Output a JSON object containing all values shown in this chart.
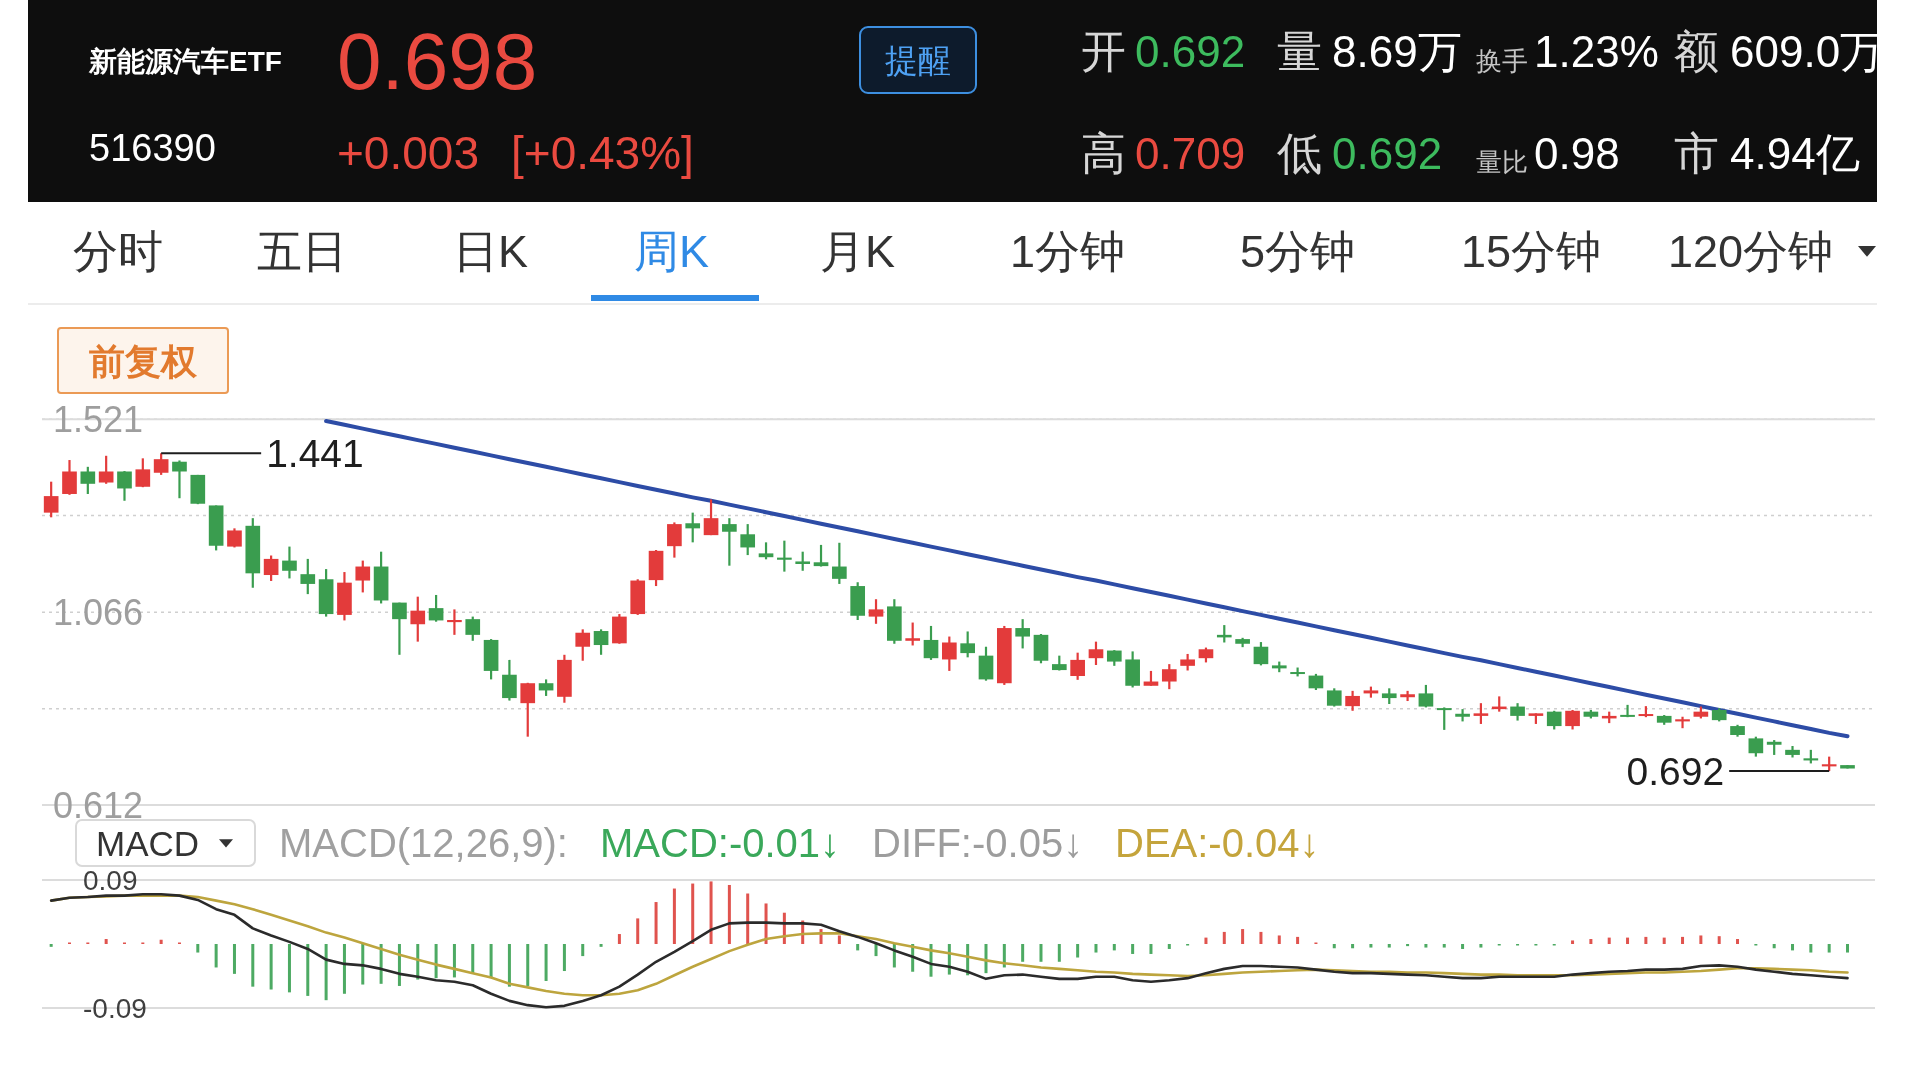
{
  "chart_data": [
    {
      "type": "other",
      "title": "新能源汽车ETF",
      "subtitle": "516390",
      "annotations": [
        "0.698",
        "+0.003",
        "[+0.43%]",
        "提醒",
        "开",
        "0.692",
        "量",
        "8.69万",
        "换手",
        "1.23%",
        "额",
        "609.0万",
        "高",
        "0.709",
        "低",
        "0.692",
        "量比",
        "0.98",
        "市",
        "4.94亿",
        "分时",
        "五日",
        "日K",
        "周K",
        "月K",
        "1分钟",
        "5分钟",
        "15分钟",
        "120分钟",
        "前复权"
      ]
    },
    {
      "type": "candlestick",
      "categories": [
        null,
        null,
        null,
        null,
        null,
        null,
        null,
        null,
        null,
        null,
        null,
        null,
        null,
        null,
        null,
        null,
        null,
        null,
        null,
        null,
        null,
        null,
        null,
        null,
        null,
        null,
        null,
        null,
        null,
        null,
        null,
        null,
        null,
        null,
        null,
        null,
        null,
        null,
        null,
        null,
        null,
        null,
        null,
        null,
        null,
        null,
        null,
        null,
        null,
        null,
        null,
        null,
        null,
        null,
        null,
        null,
        null,
        null,
        null,
        null,
        null,
        null,
        null,
        null,
        null,
        null,
        null,
        null,
        null,
        null,
        null,
        null,
        null,
        null,
        null,
        null,
        null,
        null,
        null,
        null,
        null,
        null,
        null,
        null,
        null,
        null,
        null,
        null,
        null,
        null,
        null,
        null,
        null,
        null,
        null,
        null,
        null,
        null,
        null
      ],
      "ohlc": [
        [
          1.301,
          1.374,
          1.29,
          1.34
        ],
        [
          1.345,
          1.425,
          1.343,
          1.398
        ],
        [
          1.398,
          1.409,
          1.345,
          1.369
        ],
        [
          1.372,
          1.435,
          1.369,
          1.398
        ],
        [
          1.398,
          1.399,
          1.329,
          1.358
        ],
        [
          1.362,
          1.429,
          1.361,
          1.403
        ],
        [
          1.395,
          1.441,
          1.39,
          1.427
        ],
        [
          1.421,
          1.424,
          1.335,
          1.398
        ],
        [
          1.39,
          1.39,
          1.321,
          1.322
        ],
        [
          1.318,
          1.318,
          1.212,
          1.223
        ],
        [
          1.221,
          1.264,
          1.219,
          1.259
        ],
        [
          1.27,
          1.288,
          1.124,
          1.158
        ],
        [
          1.154,
          1.2,
          1.14,
          1.192
        ],
        [
          1.188,
          1.221,
          1.146,
          1.164
        ],
        [
          1.156,
          1.192,
          1.109,
          1.133
        ],
        [
          1.144,
          1.168,
          1.056,
          1.062
        ],
        [
          1.06,
          1.161,
          1.047,
          1.136
        ],
        [
          1.141,
          1.188,
          1.113,
          1.174
        ],
        [
          1.174,
          1.209,
          1.087,
          1.094
        ],
        [
          1.089,
          1.089,
          0.966,
          1.05
        ],
        [
          1.038,
          1.103,
          0.997,
          1.07
        ],
        [
          1.076,
          1.107,
          1.044,
          1.047
        ],
        [
          1.043,
          1.073,
          1.013,
          1.048
        ],
        [
          1.05,
          1.056,
          0.999,
          1.013
        ],
        [
          1.001,
          1.003,
          0.908,
          0.928
        ],
        [
          0.919,
          0.954,
          0.858,
          0.864
        ],
        [
          0.852,
          0.9,
          0.773,
          0.899
        ],
        [
          0.899,
          0.908,
          0.869,
          0.882
        ],
        [
          0.867,
          0.966,
          0.853,
          0.954
        ],
        [
          0.985,
          1.026,
          0.952,
          1.018
        ],
        [
          1.022,
          1.026,
          0.966,
          0.989
        ],
        [
          0.993,
          1.062,
          0.992,
          1.056
        ],
        [
          1.062,
          1.144,
          1.06,
          1.141
        ],
        [
          1.142,
          1.213,
          1.128,
          1.211
        ],
        [
          1.222,
          1.278,
          1.195,
          1.274
        ],
        [
          1.276,
          1.301,
          1.231,
          1.264
        ],
        [
          1.248,
          1.332,
          1.248,
          1.288
        ],
        [
          1.274,
          1.288,
          1.176,
          1.256
        ],
        [
          1.25,
          1.274,
          1.201,
          1.219
        ],
        [
          1.205,
          1.231,
          1.191,
          1.196
        ],
        [
          1.195,
          1.235,
          1.162,
          1.19
        ],
        [
          1.186,
          1.209,
          1.164,
          1.18
        ],
        [
          1.184,
          1.225,
          1.174,
          1.175
        ],
        [
          1.174,
          1.23,
          1.133,
          1.145
        ],
        [
          1.128,
          1.137,
          1.048,
          1.058
        ],
        [
          1.056,
          1.097,
          1.039,
          1.073
        ],
        [
          1.08,
          1.097,
          0.992,
          0.999
        ],
        [
          0.999,
          1.042,
          0.988,
          1.005
        ],
        [
          1.001,
          1.034,
          0.954,
          0.958
        ],
        [
          0.955,
          1.009,
          0.928,
          0.995
        ],
        [
          0.993,
          1.021,
          0.96,
          0.97
        ],
        [
          0.964,
          0.985,
          0.905,
          0.908
        ],
        [
          0.899,
          1.034,
          0.895,
          1.029
        ],
        [
          1.029,
          1.05,
          0.981,
          1.009
        ],
        [
          1.013,
          1.015,
          0.946,
          0.952
        ],
        [
          0.944,
          0.964,
          0.929,
          0.93
        ],
        [
          0.916,
          0.971,
          0.907,
          0.954
        ],
        [
          0.958,
          0.997,
          0.942,
          0.979
        ],
        [
          0.976,
          0.977,
          0.94,
          0.95
        ],
        [
          0.955,
          0.974,
          0.889,
          0.893
        ],
        [
          0.893,
          0.928,
          0.893,
          0.903
        ],
        [
          0.903,
          0.944,
          0.885,
          0.932
        ],
        [
          0.94,
          0.968,
          0.929,
          0.955
        ],
        [
          0.958,
          0.983,
          0.948,
          0.979
        ],
        [
          1.013,
          1.036,
          0.995,
          1.007
        ],
        [
          1.003,
          1.006,
          0.984,
          0.992
        ],
        [
          0.985,
          0.996,
          0.941,
          0.944
        ],
        [
          0.941,
          0.95,
          0.925,
          0.934
        ],
        [
          0.925,
          0.936,
          0.915,
          0.921
        ],
        [
          0.917,
          0.921,
          0.883,
          0.887
        ],
        [
          0.882,
          0.887,
          0.844,
          0.846
        ],
        [
          0.845,
          0.881,
          0.834,
          0.869
        ],
        [
          0.875,
          0.891,
          0.865,
          0.882
        ],
        [
          0.875,
          0.887,
          0.85,
          0.864
        ],
        [
          0.866,
          0.881,
          0.857,
          0.873
        ],
        [
          0.875,
          0.895,
          0.842,
          0.844
        ],
        [
          0.84,
          0.842,
          0.789,
          0.836
        ],
        [
          0.827,
          0.838,
          0.809,
          0.82
        ],
        [
          0.822,
          0.852,
          0.803,
          0.828
        ],
        [
          0.838,
          0.868,
          0.832,
          0.844
        ],
        [
          0.844,
          0.852,
          0.811,
          0.822
        ],
        [
          0.822,
          0.828,
          0.803,
          0.828
        ],
        [
          0.832,
          0.834,
          0.79,
          0.798
        ],
        [
          0.798,
          0.836,
          0.79,
          0.834
        ],
        [
          0.832,
          0.836,
          0.816,
          0.82
        ],
        [
          0.816,
          0.832,
          0.805,
          0.822
        ],
        [
          0.824,
          0.848,
          0.819,
          0.82
        ],
        [
          0.822,
          0.845,
          0.819,
          0.826
        ],
        [
          0.822,
          0.824,
          0.801,
          0.806
        ],
        [
          0.809,
          0.82,
          0.793,
          0.814
        ],
        [
          0.82,
          0.844,
          0.816,
          0.832
        ],
        [
          0.836,
          0.84,
          0.809,
          0.812
        ],
        [
          0.798,
          0.801,
          0.773,
          0.777
        ],
        [
          0.769,
          0.773,
          0.726,
          0.734
        ],
        [
          0.761,
          0.765,
          0.73,
          0.754
        ],
        [
          0.742,
          0.751,
          0.724,
          0.73
        ],
        [
          0.722,
          0.742,
          0.71,
          0.717
        ],
        [
          0.703,
          0.726,
          0.692,
          0.708
        ],
        [
          0.706,
          0.706,
          0.698,
          0.698
        ]
      ],
      "colors": [
        "#e33b3b",
        "#e33b3b",
        "#3a9d4f",
        "#e33b3b",
        "#3a9d4f",
        "#e33b3b",
        "#e33b3b",
        "#3a9d4f",
        "#3a9d4f",
        "#3a9d4f",
        "#e33b3b",
        "#3a9d4f",
        "#e33b3b",
        "#3a9d4f",
        "#3a9d4f",
        "#3a9d4f",
        "#e33b3b",
        "#e33b3b",
        "#3a9d4f",
        "#3a9d4f",
        "#e33b3b",
        "#3a9d4f",
        "#e33b3b",
        "#3a9d4f",
        "#3a9d4f",
        "#3a9d4f",
        "#e33b3b",
        "#3a9d4f",
        "#e33b3b",
        "#e33b3b",
        "#3a9d4f",
        "#e33b3b",
        "#e33b3b",
        "#e33b3b",
        "#e33b3b",
        "#3a9d4f",
        "#e33b3b",
        "#3a9d4f",
        "#3a9d4f",
        "#3a9d4f",
        "#3a9d4f",
        "#3a9d4f",
        "#3a9d4f",
        "#3a9d4f",
        "#3a9d4f",
        "#e33b3b",
        "#3a9d4f",
        "#e33b3b",
        "#3a9d4f",
        "#e33b3b",
        "#3a9d4f",
        "#3a9d4f",
        "#e33b3b",
        "#3a9d4f",
        "#3a9d4f",
        "#3a9d4f",
        "#e33b3b",
        "#e33b3b",
        "#3a9d4f",
        "#3a9d4f",
        "#e33b3b",
        "#e33b3b",
        "#e33b3b",
        "#e33b3b",
        "#3a9d4f",
        "#3a9d4f",
        "#3a9d4f",
        "#3a9d4f",
        "#3a9d4f",
        "#3a9d4f",
        "#3a9d4f",
        "#e33b3b",
        "#e33b3b",
        "#3a9d4f",
        "#e33b3b",
        "#3a9d4f",
        "#3a9d4f",
        "#3a9d4f",
        "#e33b3b",
        "#e33b3b",
        "#3a9d4f",
        "#e33b3b",
        "#3a9d4f",
        "#e33b3b",
        "#3a9d4f",
        "#e33b3b",
        "#3a9d4f",
        "#e33b3b",
        "#3a9d4f",
        "#e33b3b",
        "#e33b3b",
        "#3a9d4f",
        "#3a9d4f",
        "#3a9d4f",
        "#3a9d4f",
        "#3a9d4f",
        "#3a9d4f",
        "#e33b3b",
        "#3a9d4f"
      ],
      "ylim": [
        0.612,
        1.521
      ],
      "yticks": [
        0.612,
        {
          "value": 0.839,
          "label": null
        },
        1.066,
        {
          "value": 1.294,
          "label": null
        },
        1.521
      ],
      "grid": "y",
      "tick_labels": "y",
      "series": [
        {
          "type": "line",
          "color": "#2d4ca6",
          "values": [
            null,
            null,
            null,
            null,
            null,
            null,
            null,
            null,
            null,
            null,
            null,
            null,
            null,
            null,
            null,
            1.517,
            1.508,
            1.499,
            1.49,
            1.481,
            1.472,
            1.463,
            1.454,
            1.445,
            1.436,
            1.427,
            1.418,
            1.409,
            1.4,
            1.391,
            1.382,
            1.373,
            1.364,
            1.355,
            1.346,
            1.337,
            1.329,
            1.32,
            1.311,
            1.302,
            1.293,
            1.284,
            1.275,
            1.266,
            1.257,
            1.248,
            1.239,
            1.23,
            1.221,
            1.212,
            1.203,
            1.194,
            1.185,
            1.176,
            1.167,
            1.158,
            1.149,
            1.141,
            1.132,
            1.123,
            1.114,
            1.105,
            1.096,
            1.087,
            1.078,
            1.069,
            1.06,
            1.051,
            1.042,
            1.033,
            1.024,
            1.015,
            1.006,
            0.997,
            0.988,
            0.979,
            0.97,
            0.961,
            0.953,
            0.944,
            0.935,
            0.926,
            0.917,
            0.908,
            0.899,
            0.89,
            0.881,
            0.872,
            0.863,
            0.854,
            0.845,
            0.836,
            0.827,
            0.818,
            0.809,
            0.8,
            0.791,
            0.782,
            0.774
          ]
        }
      ],
      "annotations": [
        "1.441",
        "0.692"
      ]
    },
    {
      "type": "bar",
      "title": "MACD(12,26,9):",
      "categories": [
        null,
        null,
        null,
        null,
        null,
        null,
        null,
        null,
        null,
        null,
        null,
        null,
        null,
        null,
        null,
        null,
        null,
        null,
        null,
        null,
        null,
        null,
        null,
        null,
        null,
        null,
        null,
        null,
        null,
        null,
        null,
        null,
        null,
        null,
        null,
        null,
        null,
        null,
        null,
        null,
        null,
        null,
        null,
        null,
        null,
        null,
        null,
        null,
        null,
        null,
        null,
        null,
        null,
        null,
        null,
        null,
        null,
        null,
        null,
        null,
        null,
        null,
        null,
        null,
        null,
        null,
        null,
        null,
        null,
        null,
        null,
        null,
        null,
        null,
        null,
        null,
        null,
        null,
        null,
        null,
        null,
        null,
        null,
        null,
        null,
        null,
        null,
        null,
        null,
        null,
        null,
        null,
        null,
        null,
        null,
        null,
        null,
        null,
        null
      ],
      "values": [
        -0.004,
        0.002,
        0.002,
        0.007,
        0.002,
        0.002,
        0.006,
        0.002,
        -0.012,
        -0.033,
        -0.042,
        -0.06,
        -0.064,
        -0.068,
        -0.073,
        -0.079,
        -0.07,
        -0.057,
        -0.056,
        -0.059,
        -0.05,
        -0.048,
        -0.047,
        -0.042,
        -0.048,
        -0.06,
        -0.059,
        -0.052,
        -0.038,
        -0.017,
        -0.004,
        0.014,
        0.036,
        0.059,
        0.078,
        0.085,
        0.088,
        0.083,
        0.071,
        0.057,
        0.044,
        0.033,
        0.021,
        0.012,
        -0.009,
        -0.017,
        -0.033,
        -0.039,
        -0.046,
        -0.043,
        -0.044,
        -0.041,
        -0.033,
        -0.025,
        -0.025,
        -0.025,
        -0.019,
        -0.012,
        -0.009,
        -0.014,
        -0.014,
        -0.007,
        -0.001,
        0.009,
        0.017,
        0.021,
        0.017,
        0.012,
        0.01,
        0.001,
        -0.006,
        -0.006,
        -0.005,
        -0.005,
        -0.003,
        -0.005,
        -0.005,
        -0.007,
        -0.005,
        -0.002,
        -0.002,
        -0.001,
        -0.001,
        0.005,
        0.007,
        0.009,
        0.009,
        0.01,
        0.009,
        0.01,
        0.012,
        0.011,
        0.007,
        -0.001,
        -0.006,
        -0.009,
        -0.012,
        -0.012,
        -0.012
      ],
      "colors": [
        "#4daa63",
        "#e0534e",
        "#e0534e",
        "#e0534e",
        "#e0534e",
        "#e0534e",
        "#e0534e",
        "#e0534e",
        "#4daa63",
        "#4daa63",
        "#4daa63",
        "#4daa63",
        "#4daa63",
        "#4daa63",
        "#4daa63",
        "#4daa63",
        "#4daa63",
        "#4daa63",
        "#4daa63",
        "#4daa63",
        "#4daa63",
        "#4daa63",
        "#4daa63",
        "#4daa63",
        "#4daa63",
        "#4daa63",
        "#4daa63",
        "#4daa63",
        "#4daa63",
        "#4daa63",
        "#4daa63",
        "#e0534e",
        "#e0534e",
        "#e0534e",
        "#e0534e",
        "#e0534e",
        "#e0534e",
        "#e0534e",
        "#e0534e",
        "#e0534e",
        "#e0534e",
        "#e0534e",
        "#e0534e",
        "#e0534e",
        "#4daa63",
        "#4daa63",
        "#4daa63",
        "#4daa63",
        "#4daa63",
        "#4daa63",
        "#4daa63",
        "#4daa63",
        "#4daa63",
        "#4daa63",
        "#4daa63",
        "#4daa63",
        "#4daa63",
        "#4daa63",
        "#4daa63",
        "#4daa63",
        "#4daa63",
        "#4daa63",
        "#4daa63",
        "#e0534e",
        "#e0534e",
        "#e0534e",
        "#e0534e",
        "#e0534e",
        "#e0534e",
        "#e0534e",
        "#4daa63",
        "#4daa63",
        "#4daa63",
        "#4daa63",
        "#4daa63",
        "#4daa63",
        "#4daa63",
        "#4daa63",
        "#4daa63",
        "#4daa63",
        "#4daa63",
        "#4daa63",
        "#4daa63",
        "#e0534e",
        "#e0534e",
        "#e0534e",
        "#e0534e",
        "#e0534e",
        "#e0534e",
        "#e0534e",
        "#e0534e",
        "#e0534e",
        "#e0534e",
        "#4daa63",
        "#4daa63",
        "#4daa63",
        "#4daa63",
        "#4daa63",
        "#4daa63"
      ],
      "ylim": [
        -0.09,
        0.09
      ],
      "yticks": [
        -0.09,
        0.09
      ],
      "tick_labels": "y",
      "series": [
        {
          "type": "line",
          "color": "#bda53e",
          "values": [
            0.061,
            0.065,
            0.066,
            0.067,
            0.068,
            0.068,
            0.068,
            0.068,
            0.066,
            0.061,
            0.056,
            0.049,
            0.041,
            0.033,
            0.025,
            0.016,
            0.009,
            0.001,
            -0.007,
            -0.015,
            -0.022,
            -0.029,
            -0.035,
            -0.041,
            -0.047,
            -0.056,
            -0.061,
            -0.066,
            -0.07,
            -0.072,
            -0.072,
            -0.07,
            -0.065,
            -0.056,
            -0.044,
            -0.032,
            -0.021,
            -0.01,
            -0.001,
            0.007,
            0.011,
            0.014,
            0.015,
            0.015,
            0.011,
            0.007,
            0.001,
            -0.004,
            -0.009,
            -0.013,
            -0.018,
            -0.023,
            -0.027,
            -0.03,
            -0.033,
            -0.035,
            -0.037,
            -0.039,
            -0.04,
            -0.042,
            -0.043,
            -0.044,
            -0.045,
            -0.044,
            -0.042,
            -0.04,
            -0.039,
            -0.038,
            -0.037,
            -0.036,
            -0.037,
            -0.038,
            -0.039,
            -0.039,
            -0.04,
            -0.04,
            -0.041,
            -0.042,
            -0.043,
            -0.043,
            -0.044,
            -0.044,
            -0.044,
            -0.044,
            -0.043,
            -0.042,
            -0.041,
            -0.04,
            -0.04,
            -0.039,
            -0.038,
            -0.036,
            -0.034,
            -0.034,
            -0.035,
            -0.036,
            -0.037,
            -0.039,
            -0.04
          ]
        },
        {
          "type": "line",
          "color": "#2b2b2b",
          "values": [
            0.061,
            0.065,
            0.066,
            0.068,
            0.068,
            0.07,
            0.07,
            0.068,
            0.062,
            0.049,
            0.041,
            0.022,
            0.012,
            0.003,
            -0.007,
            -0.022,
            -0.028,
            -0.03,
            -0.035,
            -0.042,
            -0.046,
            -0.051,
            -0.053,
            -0.058,
            -0.07,
            -0.08,
            -0.086,
            -0.089,
            -0.087,
            -0.08,
            -0.072,
            -0.06,
            -0.043,
            -0.025,
            -0.011,
            0.004,
            0.02,
            0.029,
            0.03,
            0.03,
            0.029,
            0.029,
            0.027,
            0.018,
            0.01,
            0.001,
            -0.009,
            -0.018,
            -0.028,
            -0.032,
            -0.039,
            -0.049,
            -0.044,
            -0.043,
            -0.046,
            -0.049,
            -0.049,
            -0.046,
            -0.046,
            -0.051,
            -0.053,
            -0.051,
            -0.048,
            -0.041,
            -0.035,
            -0.031,
            -0.031,
            -0.032,
            -0.033,
            -0.036,
            -0.039,
            -0.041,
            -0.041,
            -0.042,
            -0.043,
            -0.044,
            -0.046,
            -0.048,
            -0.048,
            -0.046,
            -0.046,
            -0.046,
            -0.046,
            -0.043,
            -0.041,
            -0.039,
            -0.038,
            -0.036,
            -0.036,
            -0.035,
            -0.031,
            -0.03,
            -0.032,
            -0.036,
            -0.039,
            -0.042,
            -0.044,
            -0.046,
            -0.048
          ]
        }
      ],
      "annotations": [
        "MACD",
        "MACD:-0.01↓",
        "DIFF:-0.05↓",
        "DEA:-0.04↓"
      ]
    }
  ]
}
